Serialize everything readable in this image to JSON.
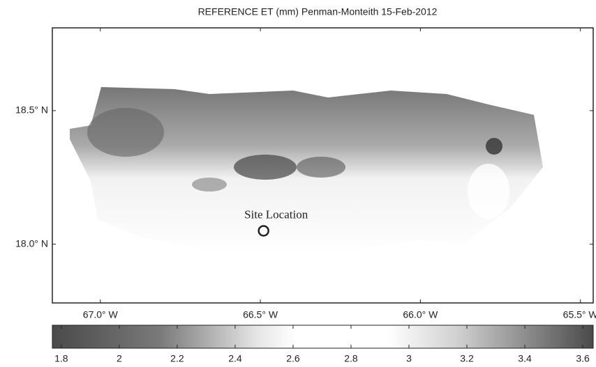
{
  "map": {
    "title": "REFERENCE ET (mm) Penman-Monteith 15-Feb-2012",
    "lonlim": [
      -67.15,
      -65.46
    ],
    "latlim": [
      17.78,
      18.81
    ],
    "lonticks": [
      {
        "value": -67.0,
        "label": "67.0° W"
      },
      {
        "value": -66.5,
        "label": "66.5° W"
      },
      {
        "value": -66.0,
        "label": "66.0° W"
      },
      {
        "value": -65.5,
        "label": "65.5° W"
      }
    ],
    "latticks": [
      {
        "value": 18.5,
        "label": "18.5° N"
      },
      {
        "value": 18.0,
        "label": "18.0° N"
      }
    ],
    "site": {
      "label": "Site Location",
      "lon": -66.49,
      "lat": 18.05
    },
    "colorbar": {
      "lim": [
        1.769,
        3.636
      ],
      "ticks": [
        1.8,
        2,
        2.2,
        2.4,
        2.6,
        2.8,
        3,
        3.2,
        3.4,
        3.6
      ]
    }
  }
}
